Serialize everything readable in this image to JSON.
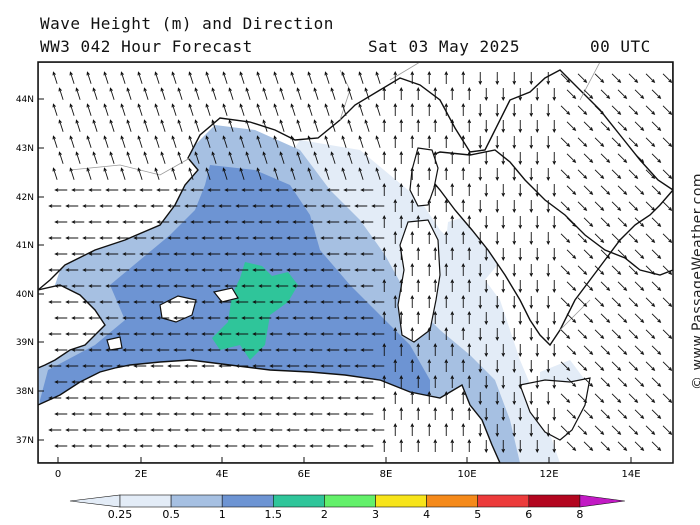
{
  "header": {
    "title": "Wave Height (m) and Direction",
    "subtitle": "WW3 042 Hour Forecast",
    "date": "Sat 03 May 2025",
    "time": "00 UTC"
  },
  "credit": "© www.PassageWeather.com",
  "map": {
    "lat_ticks": [
      "44N",
      "43N",
      "42N",
      "41N",
      "40N",
      "39N",
      "38N",
      "37N"
    ],
    "lon_ticks": [
      "0",
      "2E",
      "4E",
      "6E",
      "8E",
      "10E",
      "12E",
      "14E"
    ],
    "extent": {
      "lon": [
        -0.5,
        15
      ],
      "lat": [
        36.5,
        44.75
      ]
    }
  },
  "legend": {
    "labels": [
      "0.25",
      "0.5",
      "1",
      "1.5",
      "2",
      "3",
      "4",
      "5",
      "6",
      "8"
    ],
    "colors": [
      "#e3ecf7",
      "#a6c0e2",
      "#6d94d3",
      "#2fc59a",
      "#63f06a",
      "#f7e41a",
      "#f58a1b",
      "#ec3b3b",
      "#b3061f",
      "#c21ac4"
    ]
  }
}
